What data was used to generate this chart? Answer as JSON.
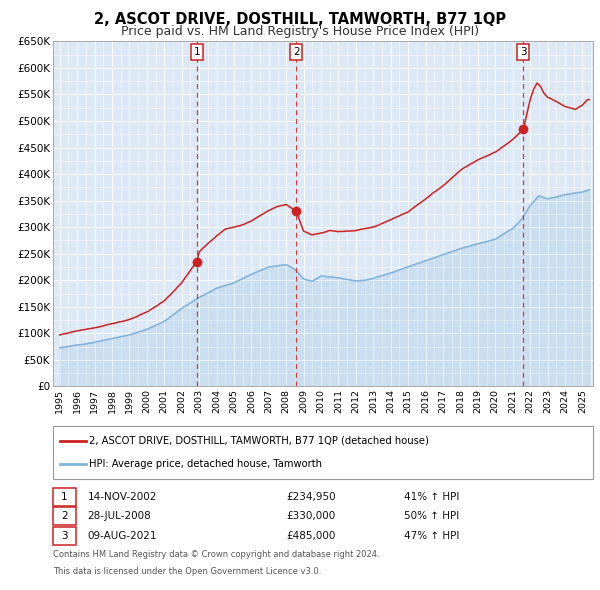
{
  "title": "2, ASCOT DRIVE, DOSTHILL, TAMWORTH, B77 1QP",
  "subtitle": "Price paid vs. HM Land Registry's House Price Index (HPI)",
  "ylim": [
    0,
    650000
  ],
  "yticks": [
    0,
    50000,
    100000,
    150000,
    200000,
    250000,
    300000,
    350000,
    400000,
    450000,
    500000,
    550000,
    600000,
    650000
  ],
  "xlim_start": 1994.6,
  "xlim_end": 2025.6,
  "bg_color": "#dce8f5",
  "grid_color": "#ffffff",
  "line1_color": "#cc2222",
  "line2_color": "#7fb3d9",
  "vline_color": "#cc2222",
  "purchase_dates": [
    2002.87,
    2008.57,
    2021.61
  ],
  "purchase_prices": [
    234950,
    330000,
    485000
  ],
  "purchase_labels": [
    "1",
    "2",
    "3"
  ],
  "purchase_info": [
    {
      "label": "1",
      "date": "14-NOV-2002",
      "price": "£234,950",
      "pct": "41% ↑ HPI"
    },
    {
      "label": "2",
      "date": "28-JUL-2008",
      "price": "£330,000",
      "pct": "50% ↑ HPI"
    },
    {
      "label": "3",
      "date": "09-AUG-2021",
      "price": "£485,000",
      "pct": "47% ↑ HPI"
    }
  ],
  "legend_line1": "2, ASCOT DRIVE, DOSTHILL, TAMWORTH, B77 1QP (detached house)",
  "legend_line2": "HPI: Average price, detached house, Tamworth",
  "footnote1": "Contains HM Land Registry data © Crown copyright and database right 2024.",
  "footnote2": "This data is licensed under the Open Government Licence v3.0.",
  "title_fontsize": 10.5,
  "subtitle_fontsize": 9
}
